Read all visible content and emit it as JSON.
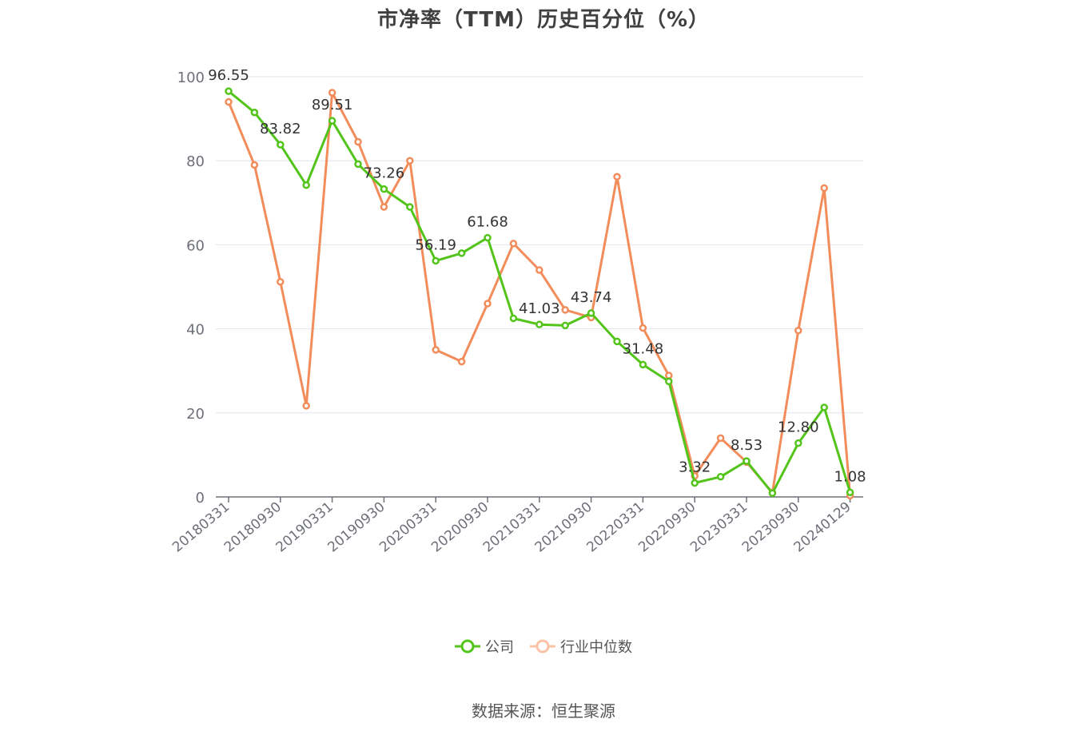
{
  "chart_data": {
    "type": "line",
    "title": "市净率（TTM）历史百分位（%）",
    "source": "数据来源：恒生聚源",
    "ylim": [
      0,
      100
    ],
    "yticks": [
      0,
      20,
      40,
      60,
      80,
      100
    ],
    "grid": true,
    "legend_position": "bottom-center",
    "tick_labels": [
      "20180331",
      "20180930",
      "20190331",
      "20190930",
      "20200331",
      "20200930",
      "20210331",
      "20210930",
      "20220331",
      "20220930",
      "20230331",
      "20230930",
      "20240129"
    ],
    "x": [
      "20180331",
      "20180630",
      "20180930",
      "20181231",
      "20190331",
      "20190630",
      "20190930",
      "20191231",
      "20200331",
      "20200630",
      "20200930",
      "20201231",
      "20210331",
      "20210630",
      "20210930",
      "20211231",
      "20220331",
      "20220630",
      "20220930",
      "20221231",
      "20230331",
      "20230630",
      "20230930",
      "20231231",
      "20240129"
    ],
    "series": [
      {
        "name": "公司",
        "color": "#52c41a",
        "values": [
          96.55,
          91.5,
          83.82,
          74.2,
          89.51,
          79.2,
          73.26,
          69.0,
          56.19,
          58.0,
          61.68,
          42.5,
          41.03,
          40.8,
          43.74,
          37.0,
          31.48,
          27.5,
          3.32,
          4.8,
          8.53,
          0.9,
          12.8,
          21.3,
          1.08
        ],
        "labels": [
          "96.55",
          "",
          "83.82",
          "",
          "89.51",
          "",
          "73.26",
          "",
          "56.19",
          "",
          "61.68",
          "",
          "41.03",
          "",
          "43.74",
          "",
          "31.48",
          "",
          "3.32",
          "",
          "8.53",
          "",
          "12.80",
          "",
          "1.08"
        ]
      },
      {
        "name": "行业中位数",
        "color": "#f28c5a",
        "values": [
          94.0,
          79.0,
          51.2,
          21.7,
          96.2,
          84.5,
          69.0,
          80.0,
          35.0,
          32.2,
          46.0,
          60.3,
          54.0,
          44.5,
          42.7,
          76.2,
          40.2,
          28.9,
          5.0,
          14.0,
          8.3,
          1.0,
          39.6,
          73.5,
          0.3
        ]
      }
    ]
  }
}
